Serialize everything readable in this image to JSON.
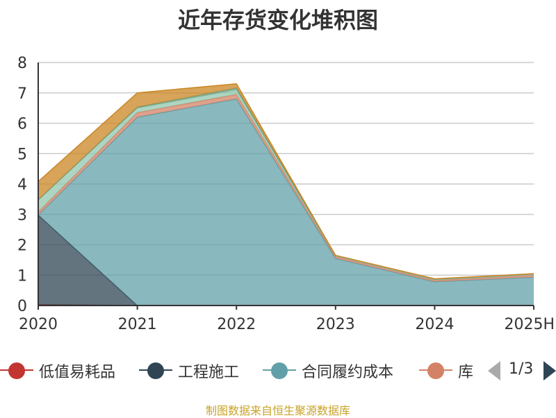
{
  "title": "近年存货变化堆积图",
  "source": "制图数据来自恒生聚源数据库",
  "pager": {
    "text": "1/3"
  },
  "legend": [
    {
      "name": "低值易耗品",
      "color": "#c23531"
    },
    {
      "name": "工程施工",
      "color": "#2f4554"
    },
    {
      "name": "合同履约成本",
      "color": "#61a0a8"
    },
    {
      "name": "库",
      "color": "#d48265"
    }
  ],
  "chart_data": {
    "type": "area",
    "stacked": true,
    "x": [
      "2020",
      "2021",
      "2022",
      "2023",
      "2024",
      "2025H"
    ],
    "ylim": [
      0,
      8
    ],
    "yticks": [
      0,
      1,
      2,
      3,
      4,
      5,
      6,
      7,
      8
    ],
    "grid": true,
    "series": [
      {
        "name": "低值易耗品",
        "color": "#c23531",
        "values": [
          0.03,
          0,
          0,
          0,
          0,
          0
        ]
      },
      {
        "name": "工程施工",
        "color": "#2f4554",
        "values": [
          2.95,
          0,
          0,
          0,
          0,
          0
        ]
      },
      {
        "name": "合同履约成本",
        "color": "#61a0a8",
        "values": [
          0,
          6.2,
          6.8,
          1.55,
          0.78,
          0.93
        ]
      },
      {
        "color": "#d48265",
        "values": [
          0.1,
          0.15,
          0.15,
          0.06,
          0.05,
          0.07
        ]
      },
      {
        "color": "#91c7ae",
        "values": [
          0.4,
          0.15,
          0.15,
          0.03,
          0.03,
          0.03
        ]
      },
      {
        "color": "#749f83",
        "values": [
          0,
          0.03,
          0.06,
          0.01,
          0.01,
          0.01
        ]
      },
      {
        "color": "#ca8622",
        "values": [
          0.6,
          0.47,
          0.14,
          0,
          0.01,
          0.01
        ]
      }
    ]
  }
}
